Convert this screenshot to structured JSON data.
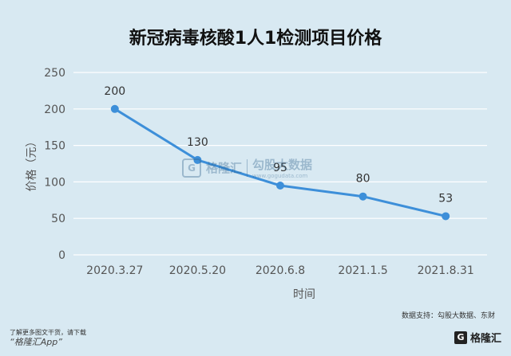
{
  "title": "新冠病毒核酸1人1检测项目价格",
  "source": "数据支持：勾股大数据、东财",
  "footnote": {
    "line1": "了解更多图文干货，请下载",
    "app": "“格隆汇App”"
  },
  "brand": {
    "logo": "G",
    "name": "格隆汇"
  },
  "watermark": {
    "logo": "G",
    "name1": "格隆汇",
    "name2": "勾股大数据",
    "url": "www.gogudata.com"
  },
  "colors": {
    "line": "#3d8fd9",
    "background": "#d8e9f2",
    "grid": "#ffffff"
  },
  "chart_data": {
    "type": "line",
    "categories": [
      "2020.3.27",
      "2020.5.20",
      "2020.6.8",
      "2021.1.5",
      "2021.8.31"
    ],
    "values": [
      200,
      130,
      95,
      80,
      53
    ],
    "data_labels": [
      "200",
      "130",
      "95",
      "80",
      "53"
    ],
    "xlabel": "时间",
    "ylabel": "价格（元）",
    "ylim": [
      0,
      250
    ],
    "yticks": [
      "0",
      "50",
      "100",
      "150",
      "200",
      "250"
    ],
    "grid": true,
    "legend": "none"
  }
}
